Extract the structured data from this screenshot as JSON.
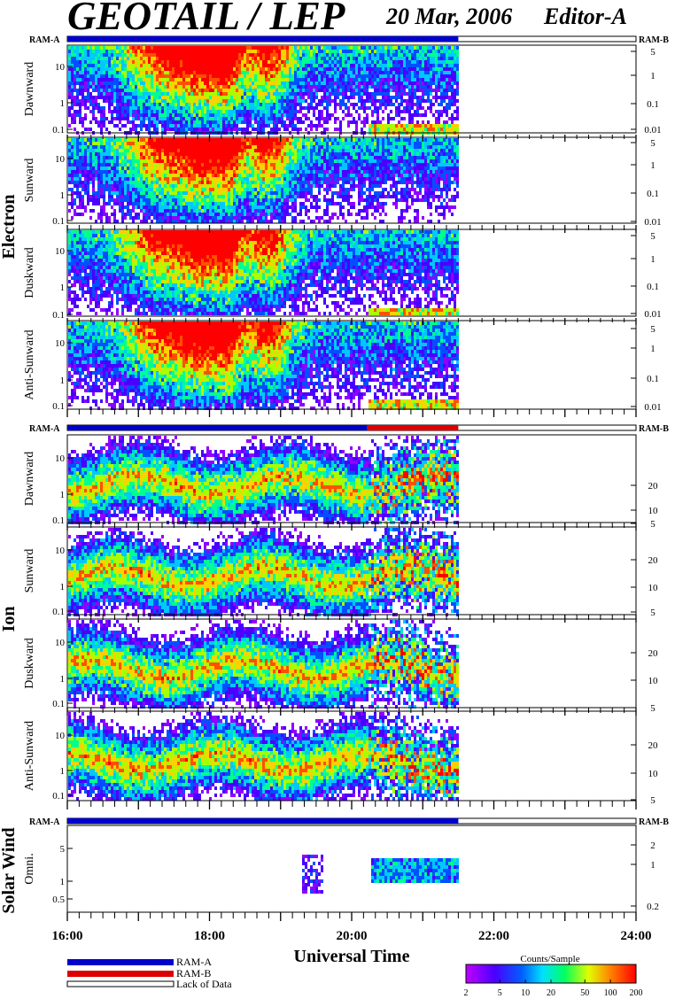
{
  "header": {
    "title": "GEOTAIL / LEP",
    "date": "20 Mar, 2006",
    "editor": "Editor-A"
  },
  "groups": [
    {
      "label": "Electron"
    },
    {
      "label": "Ion"
    },
    {
      "label": "Solar Wind"
    }
  ],
  "ram_labels": {
    "left": "RAM-A",
    "right": "RAM-B"
  },
  "time_axis": {
    "label": "Universal Time",
    "range_hours": [
      16,
      24
    ],
    "tick_labels": [
      "16:00",
      "18:00",
      "20:00",
      "22:00",
      "24:00"
    ],
    "data_end_hour": 21.5
  },
  "legend": {
    "items": [
      {
        "label": "RAM-A",
        "color": "#0000cc"
      },
      {
        "label": "RAM-B",
        "color": "#dd0000"
      },
      {
        "label": "Lack of Data",
        "color": "#ffffff"
      }
    ]
  },
  "colorbar": {
    "title": "Counts/Sample",
    "tick_labels": [
      "2",
      "5",
      "10",
      "20",
      "50",
      "100",
      "200"
    ],
    "scale": "log",
    "range": [
      2,
      200
    ]
  },
  "chart_data": {
    "type": "heatmap",
    "panels": [
      {
        "group": "Electron",
        "ylabel": "Dawnward",
        "left_ticks": [
          "10",
          "1",
          "0.1"
        ],
        "right_ticks": [
          "5",
          "1",
          "0.1",
          "0.01"
        ]
      },
      {
        "group": "Electron",
        "ylabel": "Sunward",
        "left_ticks": [
          "10",
          "1",
          "0.1"
        ],
        "right_ticks": [
          "5",
          "1",
          "0.1",
          "0.01"
        ]
      },
      {
        "group": "Electron",
        "ylabel": "Duskward",
        "left_ticks": [
          "10",
          "1",
          "0.1"
        ],
        "right_ticks": [
          "5",
          "1",
          "0.1",
          "0.01"
        ]
      },
      {
        "group": "Electron",
        "ylabel": "Anti-Sunward",
        "left_ticks": [
          "10",
          "1",
          "0.1"
        ],
        "right_ticks": [
          "5",
          "1",
          "0.1",
          "0.01"
        ]
      },
      {
        "group": "Ion",
        "ylabel": "Dawnward",
        "left_ticks": [
          "10",
          "1",
          "0.1"
        ],
        "right_ticks": [
          "20",
          "10",
          "5"
        ]
      },
      {
        "group": "Ion",
        "ylabel": "Sunward",
        "left_ticks": [
          "10",
          "1",
          "0.1"
        ],
        "right_ticks": [
          "20",
          "10",
          "5"
        ]
      },
      {
        "group": "Ion",
        "ylabel": "Duskward",
        "left_ticks": [
          "10",
          "1",
          "0.1"
        ],
        "right_ticks": [
          "20",
          "10",
          "5"
        ]
      },
      {
        "group": "Ion",
        "ylabel": "Anti-Sunward",
        "left_ticks": [
          "10",
          "1",
          "0.1"
        ],
        "right_ticks": [
          "20",
          "10",
          "5"
        ]
      },
      {
        "group": "Solar Wind",
        "ylabel": "Omni.",
        "left_ticks": [
          "5",
          "1",
          "0.5"
        ],
        "right_ticks": [
          "2",
          "1",
          "0.2"
        ]
      }
    ],
    "ram_bars": [
      {
        "section": "Electron",
        "segments": [
          {
            "mode": "RAM-A",
            "start": 16.0,
            "end": 21.5
          }
        ]
      },
      {
        "section": "Ion",
        "segments": [
          {
            "mode": "RAM-A",
            "start": 16.0,
            "end": 20.22
          },
          {
            "mode": "RAM-B",
            "start": 20.22,
            "end": 21.5
          }
        ]
      },
      {
        "section": "Solar Wind",
        "segments": [
          {
            "mode": "RAM-A",
            "start": 16.0,
            "end": 21.5
          }
        ]
      }
    ]
  }
}
